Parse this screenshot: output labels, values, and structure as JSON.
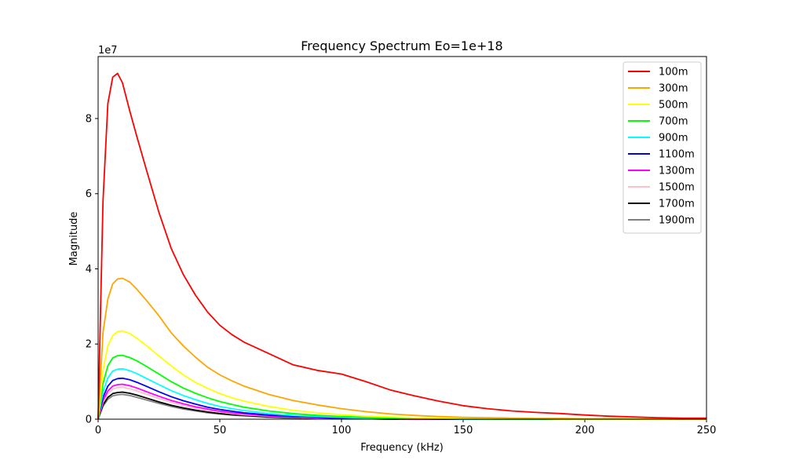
{
  "chart_data": {
    "type": "line",
    "title": "Frequency Spectrum  Eo=1e+18",
    "xlabel": "Frequency (kHz)",
    "ylabel": "Magnitude",
    "y_offset_label": "1e7",
    "xlim": [
      0,
      250
    ],
    "ylim": [
      0,
      9.65
    ],
    "x_ticks": [
      0,
      50,
      100,
      150,
      200,
      250
    ],
    "y_ticks": [
      0,
      2,
      4,
      6,
      8
    ],
    "grid": false,
    "legend_position": "top-right",
    "x": [
      0,
      2,
      4,
      6,
      8,
      10,
      13,
      16,
      20,
      25,
      30,
      35,
      40,
      45,
      50,
      55,
      60,
      70,
      80,
      90,
      100,
      110,
      120,
      130,
      140,
      150,
      160,
      170,
      180,
      190,
      200,
      210,
      220,
      230,
      240,
      250
    ],
    "series": [
      {
        "name": "100m",
        "color": "#ff0000",
        "values": [
          0,
          5.8,
          8.4,
          9.1,
          9.2,
          8.95,
          8.2,
          7.5,
          6.6,
          5.5,
          4.55,
          3.85,
          3.3,
          2.85,
          2.5,
          2.25,
          2.05,
          1.75,
          1.45,
          1.3,
          1.2,
          1.0,
          0.78,
          0.62,
          0.48,
          0.36,
          0.28,
          0.22,
          0.18,
          0.15,
          0.11,
          0.08,
          0.06,
          0.04,
          0.03,
          0.03
        ]
      },
      {
        "name": "300m",
        "color": "#ffa500",
        "values": [
          0,
          2.3,
          3.2,
          3.6,
          3.73,
          3.75,
          3.65,
          3.45,
          3.15,
          2.75,
          2.3,
          1.95,
          1.65,
          1.38,
          1.18,
          1.02,
          0.88,
          0.66,
          0.5,
          0.38,
          0.28,
          0.2,
          0.14,
          0.1,
          0.07,
          0.05,
          0.04,
          0.03,
          0.02,
          0.02,
          0.01,
          0.01,
          0.01,
          0.01,
          0.0,
          0.0
        ]
      },
      {
        "name": "500m",
        "color": "#ffff00",
        "values": [
          0,
          1.3,
          1.95,
          2.22,
          2.33,
          2.35,
          2.28,
          2.15,
          1.95,
          1.68,
          1.42,
          1.18,
          0.98,
          0.82,
          0.68,
          0.57,
          0.48,
          0.34,
          0.24,
          0.17,
          0.12,
          0.08,
          0.06,
          0.04,
          0.03,
          0.02,
          0.01,
          0.01,
          0.01,
          0.0,
          0.0,
          0.0,
          0.0,
          0.0,
          0.0,
          0.0
        ]
      },
      {
        "name": "700m",
        "color": "#00ff00",
        "values": [
          0,
          0.95,
          1.42,
          1.63,
          1.69,
          1.7,
          1.64,
          1.55,
          1.4,
          1.2,
          1.0,
          0.83,
          0.69,
          0.57,
          0.47,
          0.39,
          0.32,
          0.22,
          0.15,
          0.1,
          0.07,
          0.05,
          0.03,
          0.02,
          0.01,
          0.01,
          0.0,
          0.0,
          0.0,
          0.0,
          0.0,
          0.0,
          0.0,
          0.0,
          0.0,
          0.0
        ]
      },
      {
        "name": "900m",
        "color": "#00ffff",
        "values": [
          0,
          0.72,
          1.1,
          1.28,
          1.33,
          1.34,
          1.29,
          1.21,
          1.08,
          0.92,
          0.76,
          0.63,
          0.52,
          0.42,
          0.34,
          0.28,
          0.23,
          0.15,
          0.1,
          0.07,
          0.05,
          0.03,
          0.02,
          0.01,
          0.01,
          0.0,
          0.0,
          0.0,
          0.0,
          0.0,
          0.0,
          0.0,
          0.0,
          0.0,
          0.0,
          0.0
        ]
      },
      {
        "name": "1100m",
        "color": "#0000ff",
        "values": [
          0,
          0.58,
          0.88,
          1.03,
          1.08,
          1.09,
          1.05,
          0.98,
          0.87,
          0.73,
          0.6,
          0.49,
          0.4,
          0.32,
          0.26,
          0.21,
          0.17,
          0.11,
          0.07,
          0.05,
          0.03,
          0.02,
          0.01,
          0.01,
          0.0,
          0.0,
          0.0,
          0.0,
          0.0,
          0.0,
          0.0,
          0.0,
          0.0,
          0.0,
          0.0,
          0.0
        ]
      },
      {
        "name": "1300m",
        "color": "#ff00ff",
        "values": [
          0,
          0.5,
          0.75,
          0.88,
          0.92,
          0.93,
          0.89,
          0.83,
          0.73,
          0.61,
          0.5,
          0.41,
          0.33,
          0.27,
          0.21,
          0.17,
          0.14,
          0.09,
          0.06,
          0.04,
          0.02,
          0.01,
          0.01,
          0.0,
          0.0,
          0.0,
          0.0,
          0.0,
          0.0,
          0.0,
          0.0,
          0.0,
          0.0,
          0.0,
          0.0,
          0.0
        ]
      },
      {
        "name": "1500m",
        "color": "#ffc0cb",
        "values": [
          0,
          0.45,
          0.68,
          0.8,
          0.84,
          0.85,
          0.81,
          0.75,
          0.66,
          0.55,
          0.45,
          0.36,
          0.29,
          0.23,
          0.19,
          0.15,
          0.12,
          0.08,
          0.05,
          0.03,
          0.02,
          0.01,
          0.01,
          0.0,
          0.0,
          0.0,
          0.0,
          0.0,
          0.0,
          0.0,
          0.0,
          0.0,
          0.0,
          0.0,
          0.0,
          0.0
        ]
      },
      {
        "name": "1700m",
        "color": "#000000",
        "values": [
          0,
          0.38,
          0.58,
          0.68,
          0.71,
          0.72,
          0.69,
          0.64,
          0.56,
          0.46,
          0.37,
          0.3,
          0.24,
          0.19,
          0.15,
          0.12,
          0.1,
          0.06,
          0.04,
          0.02,
          0.01,
          0.01,
          0.0,
          0.0,
          0.0,
          0.0,
          0.0,
          0.0,
          0.0,
          0.0,
          0.0,
          0.0,
          0.0,
          0.0,
          0.0,
          0.0
        ]
      },
      {
        "name": "1900m",
        "color": "#808080",
        "values": [
          0,
          0.34,
          0.53,
          0.62,
          0.65,
          0.66,
          0.63,
          0.58,
          0.51,
          0.42,
          0.34,
          0.27,
          0.22,
          0.17,
          0.14,
          0.11,
          0.09,
          0.05,
          0.03,
          0.02,
          0.01,
          0.01,
          0.0,
          0.0,
          0.0,
          0.0,
          0.0,
          0.0,
          0.0,
          0.0,
          0.0,
          0.0,
          0.0,
          0.0,
          0.0,
          0.0
        ]
      }
    ]
  }
}
